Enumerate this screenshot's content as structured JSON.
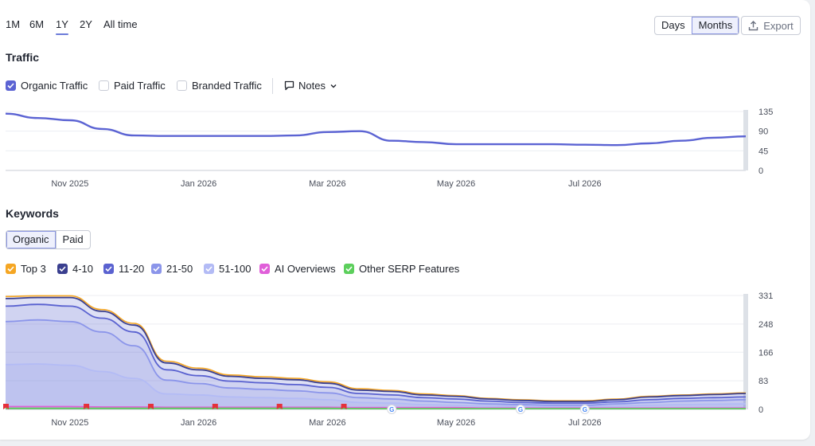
{
  "range": {
    "options": [
      "1M",
      "6M",
      "1Y",
      "2Y",
      "All time"
    ],
    "active": "1Y"
  },
  "granularity": {
    "options": [
      "Days",
      "Months"
    ],
    "active": "Months"
  },
  "export_label": "Export",
  "traffic": {
    "title": "Traffic",
    "toggles": [
      {
        "label": "Organic Traffic",
        "checked": true,
        "color": "#5b63d3"
      },
      {
        "label": "Paid Traffic",
        "checked": false
      },
      {
        "label": "Branded Traffic",
        "checked": false
      }
    ],
    "notes_label": "Notes"
  },
  "keywords": {
    "title": "Keywords",
    "tabs": [
      "Organic",
      "Paid"
    ],
    "active_tab": "Organic",
    "legend": [
      {
        "label": "Top 3",
        "color": "#f5a623"
      },
      {
        "label": "4-10",
        "color": "#3a3f8f"
      },
      {
        "label": "11-20",
        "color": "#5a62d0"
      },
      {
        "label": "21-50",
        "color": "#8b95ea"
      },
      {
        "label": "51-100",
        "color": "#b3bbf5"
      },
      {
        "label": "AI Overviews",
        "color": "#e05fd9"
      },
      {
        "label": "Other SERP Features",
        "color": "#5ccf5c"
      }
    ]
  },
  "chart_data": [
    {
      "type": "line",
      "name": "traffic",
      "x": [
        0,
        0.5,
        1,
        1.5,
        2,
        2.5,
        3,
        3.5,
        4,
        4.5,
        5,
        5.5,
        6,
        6.5,
        7,
        7.5,
        8,
        8.5,
        9,
        9.5,
        10,
        10.5,
        11,
        11.5
      ],
      "x_tick_labels": [
        "Nov 2025",
        "Jan 2026",
        "Mar 2026",
        "May 2026",
        "Jul 2026"
      ],
      "x_tick_positions": [
        1,
        3,
        5,
        7,
        9
      ],
      "series": [
        {
          "name": "Organic Traffic",
          "color": "#5b63d3",
          "values": [
            130,
            120,
            115,
            95,
            80,
            79,
            79,
            79,
            79,
            80,
            88,
            90,
            68,
            65,
            60,
            60,
            60,
            60,
            59,
            58,
            62,
            68,
            75,
            78
          ]
        }
      ],
      "ylim": [
        0,
        135
      ],
      "y_ticks": [
        0,
        45,
        90,
        135
      ],
      "grid": true
    },
    {
      "type": "area",
      "name": "keywords",
      "x": [
        0,
        0.5,
        1,
        1.5,
        2,
        2.5,
        3,
        3.5,
        4,
        4.5,
        5,
        5.5,
        6,
        6.5,
        7,
        7.5,
        8,
        8.5,
        9,
        9.5,
        10,
        10.5,
        11,
        11.5
      ],
      "x_tick_labels": [
        "Nov 2025",
        "Jan 2026",
        "Mar 2026",
        "May 2026",
        "Jul 2026"
      ],
      "x_tick_positions": [
        1,
        3,
        5,
        7,
        9
      ],
      "series": [
        {
          "name": "Top 3",
          "color": "#f5a623",
          "values": [
            328,
            330,
            330,
            290,
            250,
            140,
            120,
            100,
            95,
            90,
            80,
            60,
            55,
            45,
            40,
            32,
            28,
            25,
            25,
            30,
            38,
            42,
            45,
            48
          ]
        },
        {
          "name": "4-10",
          "color": "#3a3f8f",
          "values": [
            322,
            325,
            325,
            285,
            245,
            135,
            115,
            96,
            90,
            86,
            76,
            56,
            52,
            42,
            38,
            30,
            26,
            23,
            23,
            28,
            36,
            40,
            43,
            46
          ]
        },
        {
          "name": "11-20",
          "color": "#5a62d0",
          "values": [
            300,
            305,
            300,
            265,
            225,
            115,
            98,
            82,
            77,
            72,
            64,
            46,
            42,
            34,
            30,
            24,
            20,
            18,
            18,
            22,
            28,
            32,
            34,
            36
          ]
        },
        {
          "name": "21-50",
          "color": "#8b95ea",
          "values": [
            255,
            260,
            255,
            225,
            185,
            85,
            75,
            62,
            58,
            54,
            48,
            34,
            30,
            24,
            20,
            16,
            14,
            12,
            12,
            16,
            20,
            24,
            26,
            28
          ]
        },
        {
          "name": "51-100",
          "color": "#b3bbf5",
          "values": [
            130,
            132,
            128,
            110,
            90,
            45,
            42,
            36,
            34,
            32,
            28,
            20,
            18,
            14,
            12,
            10,
            9,
            8,
            8,
            10,
            12,
            14,
            15,
            16
          ]
        },
        {
          "name": "AI Overviews",
          "color": "#e05fd9",
          "values": [
            8,
            8,
            8,
            7,
            7,
            6,
            6,
            6,
            6,
            6,
            6,
            5,
            5,
            5,
            5,
            4,
            4,
            4,
            4,
            4,
            4,
            4,
            4,
            4
          ]
        },
        {
          "name": "Other SERP Features",
          "color": "#5ccf5c",
          "values": [
            3,
            3,
            3,
            3,
            3,
            3,
            3,
            3,
            3,
            3,
            3,
            2,
            2,
            2,
            2,
            2,
            2,
            2,
            2,
            2,
            2,
            2,
            2,
            2
          ]
        }
      ],
      "ylim": [
        0,
        331
      ],
      "y_ticks": [
        0,
        83,
        166,
        248,
        331
      ],
      "grid": true,
      "markers": {
        "flags_x": [
          0,
          1.25,
          2.25,
          3.25,
          4.25,
          5.25
        ],
        "google_x": [
          6,
          8,
          9
        ]
      }
    }
  ]
}
